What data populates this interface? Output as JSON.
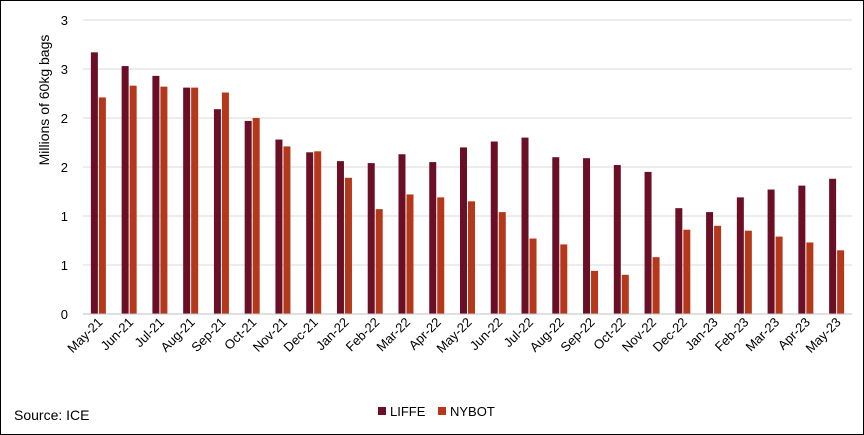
{
  "source": "Source: ICE",
  "chart_data": {
    "type": "bar",
    "ylabel": "Millions of 60kg bags",
    "ytick_labels": [
      "0",
      "1",
      "1",
      "2",
      "2",
      "3",
      "3"
    ],
    "ylim": [
      0,
      3
    ],
    "grid": true,
    "legend_position": "bottom",
    "categories": [
      "May-21",
      "Jun-21",
      "Jul-21",
      "Aug-21",
      "Sep-21",
      "Oct-21",
      "Nov-21",
      "Dec-21",
      "Jan-22",
      "Feb-22",
      "Mar-22",
      "Apr-22",
      "May-22",
      "Jun-22",
      "Jul-22",
      "Aug-22",
      "Sep-22",
      "Oct-22",
      "Nov-22",
      "Dec-22",
      "Jan-23",
      "Feb-23",
      "Mar-23",
      "Apr-23",
      "May-23"
    ],
    "series": [
      {
        "name": "LIFFE",
        "color": "#6b0f26",
        "values": [
          2.67,
          2.53,
          2.43,
          2.31,
          2.09,
          1.97,
          1.78,
          1.65,
          1.56,
          1.54,
          1.63,
          1.55,
          1.7,
          1.76,
          1.8,
          1.6,
          1.59,
          1.52,
          1.45,
          1.08,
          1.04,
          1.19,
          1.27,
          1.31,
          1.38
        ]
      },
      {
        "name": "NYBOT",
        "color": "#b5381a",
        "values": [
          2.21,
          2.33,
          2.32,
          2.31,
          2.26,
          2.0,
          1.71,
          1.66,
          1.39,
          1.07,
          1.22,
          1.19,
          1.15,
          1.04,
          0.77,
          0.71,
          0.44,
          0.4,
          0.58,
          0.86,
          0.9,
          0.85,
          0.79,
          0.73,
          0.65
        ]
      }
    ]
  }
}
